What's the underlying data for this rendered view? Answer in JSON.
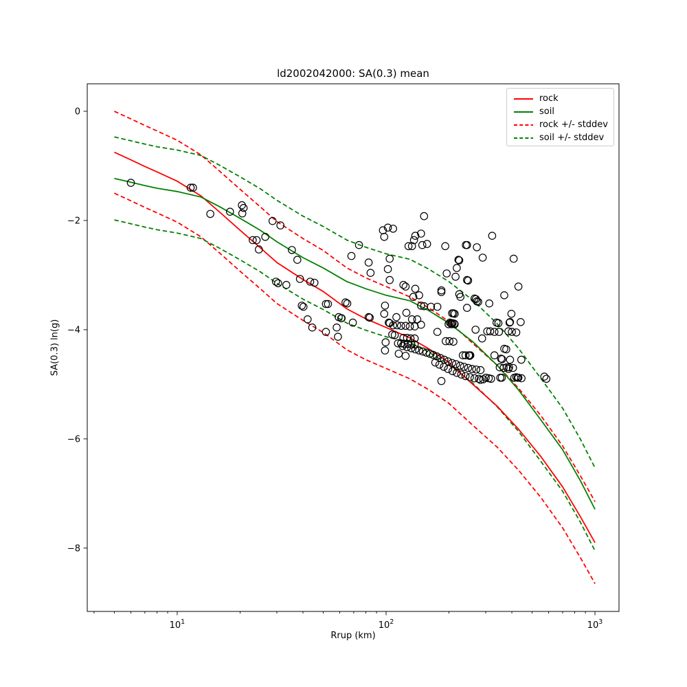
{
  "title": "ld2002042000: SA(0.3) mean",
  "xlabel": "Rrup (km)",
  "ylabel": "SA(0.3) ln(g)",
  "chart_data": {
    "type": "line",
    "subtype": "attenuation curves with scatter overlay",
    "x_scale": "log",
    "y_scale": "linear",
    "xlim": [
      3.71,
      1303
    ],
    "ylim": [
      -9.16,
      0.503
    ],
    "grid": false,
    "background": "#ffffff",
    "x_axis": {
      "label": "Rrup (km)",
      "major_ticks": [
        {
          "value": 10,
          "base": "10",
          "exp": "1"
        },
        {
          "value": 100,
          "base": "10",
          "exp": "2"
        },
        {
          "value": 1000,
          "base": "10",
          "exp": "3"
        }
      ],
      "minor_ticks": [
        4,
        5,
        6,
        7,
        8,
        9,
        20,
        30,
        40,
        50,
        60,
        70,
        80,
        90,
        200,
        300,
        400,
        500,
        600,
        700,
        800,
        900
      ]
    },
    "y_axis": {
      "label": "SA(0.3) ln(g)",
      "ticks": [
        {
          "value": 0,
          "label": "0"
        },
        {
          "value": -2,
          "label": "−2"
        },
        {
          "value": -4,
          "label": "−4"
        },
        {
          "value": -6,
          "label": "−6"
        },
        {
          "value": -8,
          "label": "−8"
        }
      ]
    },
    "legend": {
      "location": "upper right"
    },
    "series": [
      {
        "name": "rock",
        "style": "solid",
        "color": "#ff0000",
        "points": [
          [
            5,
            -0.75
          ],
          [
            6,
            -0.89
          ],
          [
            7,
            -1.01
          ],
          [
            8,
            -1.11
          ],
          [
            10,
            -1.28
          ],
          [
            13,
            -1.55
          ],
          [
            16,
            -1.85
          ],
          [
            20,
            -2.18
          ],
          [
            25,
            -2.5
          ],
          [
            30,
            -2.77
          ],
          [
            40,
            -3.08
          ],
          [
            50,
            -3.3
          ],
          [
            65,
            -3.62
          ],
          [
            80,
            -3.8
          ],
          [
            100,
            -3.96
          ],
          [
            130,
            -4.15
          ],
          [
            160,
            -4.35
          ],
          [
            200,
            -4.6
          ],
          [
            260,
            -5.0
          ],
          [
            340,
            -5.4
          ],
          [
            430,
            -5.82
          ],
          [
            550,
            -6.32
          ],
          [
            700,
            -6.88
          ],
          [
            850,
            -7.42
          ],
          [
            1000,
            -7.9
          ]
        ]
      },
      {
        "name": "soil",
        "style": "solid",
        "color": "#008000",
        "points": [
          [
            5,
            -1.23
          ],
          [
            6,
            -1.3
          ],
          [
            7,
            -1.36
          ],
          [
            8,
            -1.41
          ],
          [
            10,
            -1.47
          ],
          [
            13,
            -1.57
          ],
          [
            16,
            -1.75
          ],
          [
            20,
            -1.96
          ],
          [
            25,
            -2.18
          ],
          [
            30,
            -2.39
          ],
          [
            40,
            -2.68
          ],
          [
            50,
            -2.87
          ],
          [
            65,
            -3.12
          ],
          [
            80,
            -3.25
          ],
          [
            100,
            -3.37
          ],
          [
            130,
            -3.47
          ],
          [
            160,
            -3.65
          ],
          [
            200,
            -3.88
          ],
          [
            260,
            -4.22
          ],
          [
            340,
            -4.65
          ],
          [
            430,
            -5.1
          ],
          [
            550,
            -5.65
          ],
          [
            700,
            -6.2
          ],
          [
            850,
            -6.76
          ],
          [
            1000,
            -7.29
          ]
        ]
      },
      {
        "name": "rock +/- stddev",
        "style": "dashed",
        "color": "#ff0000",
        "base": "rock",
        "stddev": 0.75
      },
      {
        "name": "soil +/- stddev",
        "style": "dashed",
        "color": "#008000",
        "base": "soil",
        "stddev": 0.76
      }
    ],
    "scatter": {
      "marker": "open-circle",
      "edge_color": "#000000",
      "fill": "none",
      "points": [
        [
          6,
          -1.31
        ],
        [
          11.6,
          -1.4
        ],
        [
          11.9,
          -1.4
        ],
        [
          14.4,
          -1.88
        ],
        [
          17.9,
          -1.84
        ],
        [
          20.4,
          -1.72
        ],
        [
          20.5,
          -1.87
        ],
        [
          20.8,
          -1.77
        ],
        [
          23,
          -2.36
        ],
        [
          24,
          -2.36
        ],
        [
          24.6,
          -2.53
        ],
        [
          26.4,
          -2.3
        ],
        [
          28.6,
          -2.01
        ],
        [
          31.2,
          -2.09
        ],
        [
          35.4,
          -2.54
        ],
        [
          37.6,
          -2.72
        ],
        [
          29.7,
          -3.12
        ],
        [
          30.4,
          -3.15
        ],
        [
          33.3,
          -3.18
        ],
        [
          38.7,
          -3.07
        ],
        [
          43.3,
          -3.12
        ],
        [
          45.4,
          -3.14
        ],
        [
          39.5,
          -3.56
        ],
        [
          40.2,
          -3.58
        ],
        [
          42.1,
          -3.81
        ],
        [
          44.3,
          -3.96
        ],
        [
          51.5,
          -3.53
        ],
        [
          52.7,
          -3.53
        ],
        [
          51.5,
          -4.04
        ],
        [
          58,
          -3.96
        ],
        [
          58.8,
          -4.13
        ],
        [
          59.3,
          -3.77
        ],
        [
          61.2,
          -3.79
        ],
        [
          63.9,
          -3.5
        ],
        [
          65.2,
          -3.52
        ],
        [
          68.2,
          -2.65
        ],
        [
          74.2,
          -2.45
        ],
        [
          82.5,
          -2.77
        ],
        [
          84.3,
          -2.96
        ],
        [
          96.6,
          -2.18
        ],
        [
          102,
          -2.13
        ],
        [
          108,
          -2.15
        ],
        [
          98,
          -2.3
        ],
        [
          104,
          -2.7
        ],
        [
          102,
          -2.89
        ],
        [
          104,
          -3.09
        ],
        [
          121,
          -3.18
        ],
        [
          124,
          -3.21
        ],
        [
          128,
          -2.47
        ],
        [
          133,
          -2.47
        ],
        [
          136,
          -2.36
        ],
        [
          138,
          -2.28
        ],
        [
          147,
          -2.24
        ],
        [
          149,
          -2.45
        ],
        [
          152,
          -1.92
        ],
        [
          157,
          -2.43
        ],
        [
          138,
          -3.25
        ],
        [
          135,
          -3.4
        ],
        [
          144,
          -3.37
        ],
        [
          61,
          -3.79
        ],
        [
          69.3,
          -3.87
        ],
        [
          82.5,
          -3.77
        ],
        [
          83.5,
          -3.78
        ],
        [
          98.8,
          -3.56
        ],
        [
          98,
          -3.71
        ],
        [
          103,
          -3.87
        ],
        [
          104,
          -3.88
        ],
        [
          98.8,
          -4.38
        ],
        [
          99.5,
          -4.23
        ],
        [
          192,
          -2.47
        ],
        [
          195,
          -2.97
        ],
        [
          215,
          -3.03
        ],
        [
          218,
          -2.87
        ],
        [
          222,
          -2.72
        ],
        [
          224,
          -2.73
        ],
        [
          241,
          -2.45
        ],
        [
          244,
          -2.45
        ],
        [
          244,
          -3.09
        ],
        [
          247,
          -3.1
        ],
        [
          272,
          -2.49
        ],
        [
          290,
          -2.68
        ],
        [
          322,
          -2.28
        ],
        [
          408,
          -2.7
        ],
        [
          430,
          -3.21
        ],
        [
          368,
          -3.37
        ],
        [
          184,
          -3.31
        ],
        [
          227,
          -3.4
        ],
        [
          272,
          -3.48
        ],
        [
          276,
          -3.49
        ],
        [
          312,
          -3.52
        ],
        [
          244,
          -3.6
        ],
        [
          207,
          -3.7
        ],
        [
          210,
          -3.7
        ],
        [
          213,
          -3.71
        ],
        [
          202,
          -3.87
        ],
        [
          205,
          -3.88
        ],
        [
          208,
          -3.88
        ],
        [
          212,
          -3.89
        ],
        [
          338,
          -3.87
        ],
        [
          345,
          -3.88
        ],
        [
          390,
          -3.87
        ],
        [
          268,
          -4
        ],
        [
          305,
          -4.03
        ],
        [
          315,
          -4.03
        ],
        [
          330,
          -4.04
        ],
        [
          347,
          -4.04
        ],
        [
          385,
          -4.03
        ],
        [
          400,
          -4.04
        ],
        [
          420,
          -4.05
        ],
        [
          288,
          -4.16
        ],
        [
          368,
          -4.35
        ],
        [
          376,
          -4.36
        ],
        [
          249,
          -4.47
        ],
        [
          253,
          -4.47
        ],
        [
          355,
          -4.53
        ],
        [
          359,
          -4.54
        ],
        [
          385,
          -4.72
        ],
        [
          420,
          -4.87
        ],
        [
          426,
          -4.88
        ],
        [
          572,
          -4.86
        ],
        [
          585,
          -4.9
        ],
        [
          398,
          -3.71
        ],
        [
          392,
          -3.86
        ],
        [
          441,
          -3.86
        ],
        [
          388,
          -4.69
        ],
        [
          392,
          -4.55
        ],
        [
          444,
          -4.55
        ],
        [
          378,
          -4.69
        ],
        [
          405,
          -4.7
        ],
        [
          411,
          -4.88
        ],
        [
          430,
          -4.88
        ],
        [
          445,
          -4.89
        ],
        [
          352,
          -4.88
        ],
        [
          358,
          -4.88
        ],
        [
          147,
          -3.56
        ],
        [
          152,
          -3.57
        ],
        [
          164,
          -3.58
        ],
        [
          176,
          -3.58
        ],
        [
          184,
          -3.28
        ],
        [
          224,
          -3.35
        ],
        [
          265,
          -3.43
        ],
        [
          269,
          -3.44
        ],
        [
          112,
          -3.77
        ],
        [
          125,
          -3.69
        ],
        [
          133,
          -3.81
        ],
        [
          141,
          -3.81
        ],
        [
          147,
          -3.91
        ],
        [
          199,
          -3.9
        ],
        [
          206,
          -3.9
        ],
        [
          213,
          -3.9
        ],
        [
          176,
          -4.04
        ],
        [
          193,
          -4.21
        ],
        [
          201,
          -4.21
        ],
        [
          210,
          -4.22
        ],
        [
          233,
          -4.47
        ],
        [
          240,
          -4.47
        ],
        [
          251,
          -4.48
        ],
        [
          330,
          -4.47
        ],
        [
          350,
          -4.69
        ],
        [
          365,
          -4.7
        ],
        [
          108,
          -3.92
        ],
        [
          113,
          -3.92
        ],
        [
          118,
          -3.93
        ],
        [
          124,
          -3.93
        ],
        [
          130,
          -3.94
        ],
        [
          137,
          -3.94
        ],
        [
          107,
          -4.09
        ],
        [
          110,
          -4.1
        ],
        [
          121,
          -4.15
        ],
        [
          126,
          -4.15
        ],
        [
          131,
          -4.16
        ],
        [
          137,
          -4.16
        ],
        [
          114,
          -4.25
        ],
        [
          118,
          -4.25
        ],
        [
          122,
          -4.26
        ],
        [
          127,
          -4.26
        ],
        [
          132,
          -4.27
        ],
        [
          137,
          -4.27
        ],
        [
          115,
          -4.44
        ],
        [
          120,
          -4.3
        ],
        [
          124,
          -4.48
        ],
        [
          126,
          -4.32
        ],
        [
          132,
          -4.34
        ],
        [
          138,
          -4.36
        ],
        [
          144,
          -4.38
        ],
        [
          150,
          -4.4
        ],
        [
          156,
          -4.42
        ],
        [
          162,
          -4.44
        ],
        [
          168,
          -4.46
        ],
        [
          175,
          -4.49
        ],
        [
          182,
          -4.52
        ],
        [
          190,
          -4.55
        ],
        [
          198,
          -4.58
        ],
        [
          207,
          -4.61
        ],
        [
          216,
          -4.63
        ],
        [
          226,
          -4.66
        ],
        [
          236,
          -4.68
        ],
        [
          247,
          -4.7
        ],
        [
          258,
          -4.72
        ],
        [
          270,
          -4.73
        ],
        [
          283,
          -4.74
        ],
        [
          172,
          -4.6
        ],
        [
          180,
          -4.64
        ],
        [
          189,
          -4.68
        ],
        [
          198,
          -4.72
        ],
        [
          208,
          -4.76
        ],
        [
          218,
          -4.79
        ],
        [
          229,
          -4.82
        ],
        [
          240,
          -4.85
        ],
        [
          252,
          -4.87
        ],
        [
          265,
          -4.89
        ],
        [
          278,
          -4.9
        ],
        [
          292,
          -4.91
        ],
        [
          300,
          -4.88
        ],
        [
          310,
          -4.89
        ],
        [
          318,
          -4.9
        ],
        [
          184,
          -4.94
        ],
        [
          283,
          -4.92
        ]
      ]
    }
  }
}
